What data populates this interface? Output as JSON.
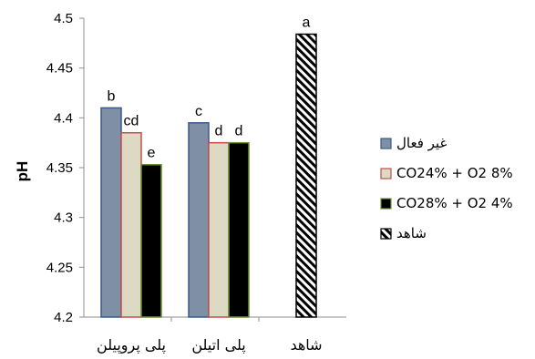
{
  "chart_data": {
    "type": "bar",
    "ylabel": "pH",
    "ylim": [
      4.2,
      4.5
    ],
    "yticks": [
      "4.2",
      "4.25",
      "4.3",
      "4.35",
      "4.4",
      "4.45",
      "4.5"
    ],
    "categories": [
      "پلی پروپیلن",
      "پلی اتیلن",
      "شاهد"
    ],
    "legend_position": "right",
    "series": [
      {
        "name": "غیر فعال",
        "fill": "#7f8fa6",
        "stroke": "#3b5b8c",
        "values": [
          4.41,
          4.395,
          null
        ],
        "labels": [
          "b",
          "c",
          ""
        ]
      },
      {
        "name": "CO24% + O2 8%",
        "fill": "#ddd9c3",
        "stroke": "#c0504d",
        "values": [
          4.385,
          4.375,
          null
        ],
        "labels": [
          "cd",
          "d",
          ""
        ]
      },
      {
        "name": "CO28% + O2 4%",
        "fill": "#000000",
        "stroke": "#6a8f3a",
        "values": [
          4.353,
          4.375,
          null
        ],
        "labels": [
          "e",
          "d",
          ""
        ]
      },
      {
        "name": "شاهد",
        "fill": "hatch",
        "stroke": "#000000",
        "values": [
          null,
          null,
          4.484
        ],
        "labels": [
          "",
          "",
          "a"
        ]
      }
    ]
  }
}
